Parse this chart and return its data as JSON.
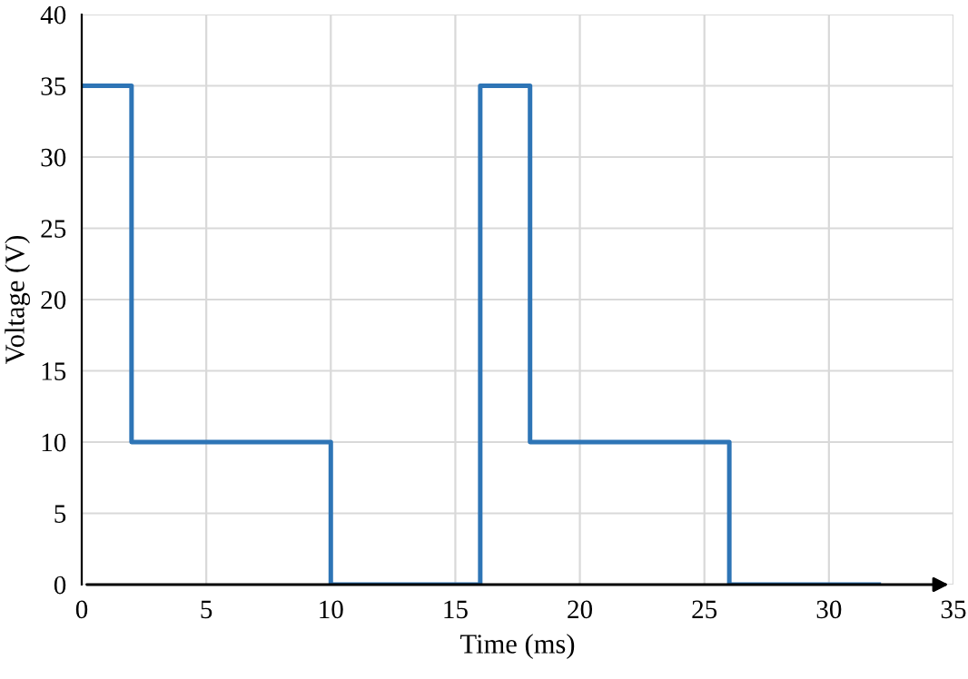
{
  "chart_data": {
    "type": "step",
    "xlabel": "Time (ms)",
    "ylabel": "Voltage (V)",
    "x": [
      0,
      2,
      10,
      16,
      18,
      26,
      32
    ],
    "series": [
      {
        "color": "#2e75b6",
        "values": [
          35,
          10,
          0,
          35,
          10,
          0,
          0
        ]
      }
    ],
    "xlim": [
      0,
      35
    ],
    "xticks": [
      0,
      5,
      10,
      15,
      20,
      25,
      30,
      35
    ],
    "ylim": [
      0,
      40
    ],
    "yticks": [
      0,
      5,
      10,
      15,
      20,
      25,
      30,
      35,
      40
    ],
    "grid": true,
    "marker": "none",
    "line_style": "solid"
  }
}
